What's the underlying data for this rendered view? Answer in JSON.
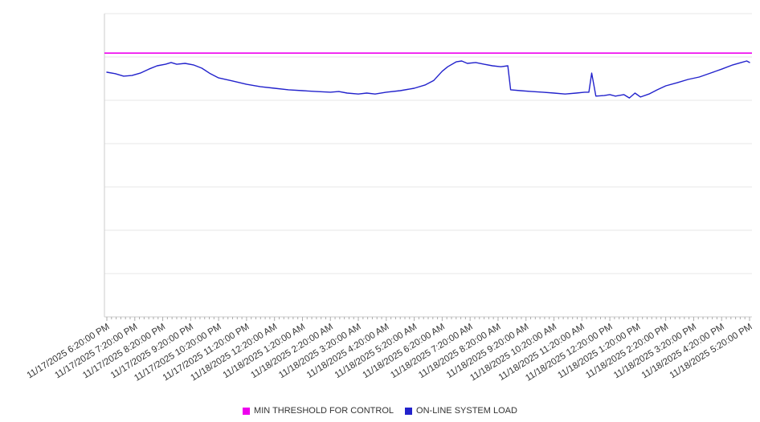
{
  "chart_data": {
    "type": "line",
    "title": "",
    "xlabel": "",
    "ylabel": "",
    "ylim": [
      0,
      100
    ],
    "grid": true,
    "y_gridline_intervals": 7,
    "minor_ticks_per_interval": 6,
    "legend_position": "bottom",
    "categories": [
      "11/17/2025 6:20:00 PM",
      "11/17/2025 7:20:00 PM",
      "11/17/2025 8:20:00 PM",
      "11/17/2025 9:20:00 PM",
      "11/17/2025 10:20:00 PM",
      "11/17/2025 11:20:00 PM",
      "11/18/2025 12:20:00 AM",
      "11/18/2025 1:20:00 AM",
      "11/18/2025 2:20:00 AM",
      "11/18/2025 3:20:00 AM",
      "11/18/2025 4:20:00 AM",
      "11/18/2025 5:20:00 AM",
      "11/18/2025 6:20:00 AM",
      "11/18/2025 7:20:00 AM",
      "11/18/2025 8:20:00 AM",
      "11/18/2025 9:20:00 AM",
      "11/18/2025 10:20:00 AM",
      "11/18/2025 11:20:00 AM",
      "11/18/2025 12:20:00 PM",
      "11/18/2025 1:20:00 PM",
      "11/18/2025 2:20:00 PM",
      "11/18/2025 3:20:00 PM",
      "11/18/2025 4:20:00 PM",
      "11/18/2025 5:20:00 PM"
    ],
    "series": [
      {
        "name": "MIN THRESHOLD FOR CONTROL",
        "type": "constant-line",
        "color": "#ee00ee",
        "value": 87.0
      },
      {
        "name": "ON-LINE SYSTEM LOAD",
        "type": "line",
        "color": "#2222cc",
        "points": [
          [
            0.0,
            80.7
          ],
          [
            0.3,
            80.2
          ],
          [
            0.6,
            79.4
          ],
          [
            0.9,
            79.6
          ],
          [
            1.2,
            80.4
          ],
          [
            1.5,
            81.7
          ],
          [
            1.8,
            82.8
          ],
          [
            2.1,
            83.3
          ],
          [
            2.3,
            83.9
          ],
          [
            2.5,
            83.3
          ],
          [
            2.8,
            83.6
          ],
          [
            3.1,
            83.1
          ],
          [
            3.4,
            82.0
          ],
          [
            3.7,
            80.2
          ],
          [
            4.0,
            78.8
          ],
          [
            4.5,
            77.8
          ],
          [
            5.0,
            76.7
          ],
          [
            5.5,
            75.9
          ],
          [
            6.0,
            75.4
          ],
          [
            6.5,
            74.9
          ],
          [
            7.0,
            74.6
          ],
          [
            7.5,
            74.3
          ],
          [
            8.0,
            74.1
          ],
          [
            8.3,
            74.3
          ],
          [
            8.6,
            73.8
          ],
          [
            9.0,
            73.5
          ],
          [
            9.3,
            73.8
          ],
          [
            9.6,
            73.5
          ],
          [
            10.0,
            74.1
          ],
          [
            10.5,
            74.6
          ],
          [
            11.0,
            75.4
          ],
          [
            11.4,
            76.5
          ],
          [
            11.7,
            78.0
          ],
          [
            12.0,
            81.0
          ],
          [
            12.2,
            82.5
          ],
          [
            12.5,
            84.1
          ],
          [
            12.7,
            84.4
          ],
          [
            12.9,
            83.6
          ],
          [
            13.2,
            83.9
          ],
          [
            13.5,
            83.3
          ],
          [
            13.8,
            82.8
          ],
          [
            14.1,
            82.5
          ],
          [
            14.35,
            82.8
          ],
          [
            14.45,
            74.9
          ],
          [
            14.8,
            74.6
          ],
          [
            15.2,
            74.3
          ],
          [
            15.6,
            74.1
          ],
          [
            16.0,
            73.8
          ],
          [
            16.4,
            73.5
          ],
          [
            16.8,
            73.8
          ],
          [
            17.1,
            74.1
          ],
          [
            17.25,
            74.1
          ],
          [
            17.35,
            80.4
          ],
          [
            17.5,
            72.8
          ],
          [
            17.8,
            73.0
          ],
          [
            18.0,
            73.3
          ],
          [
            18.2,
            72.8
          ],
          [
            18.5,
            73.3
          ],
          [
            18.7,
            72.2
          ],
          [
            18.9,
            73.8
          ],
          [
            19.1,
            72.5
          ],
          [
            19.4,
            73.5
          ],
          [
            19.7,
            74.9
          ],
          [
            20.0,
            76.2
          ],
          [
            20.4,
            77.2
          ],
          [
            20.8,
            78.3
          ],
          [
            21.2,
            79.1
          ],
          [
            21.6,
            80.4
          ],
          [
            22.0,
            81.7
          ],
          [
            22.4,
            83.1
          ],
          [
            22.7,
            83.9
          ],
          [
            22.9,
            84.4
          ],
          [
            23.0,
            83.9
          ]
        ]
      }
    ],
    "colors": {
      "gridline": "#e7e7e7",
      "axis": "#cccccc",
      "tick": "#aaaaaa",
      "label": "#333333"
    }
  },
  "legend": {
    "items": [
      {
        "label": "MIN THRESHOLD FOR CONTROL"
      },
      {
        "label": "ON-LINE SYSTEM LOAD"
      }
    ]
  }
}
